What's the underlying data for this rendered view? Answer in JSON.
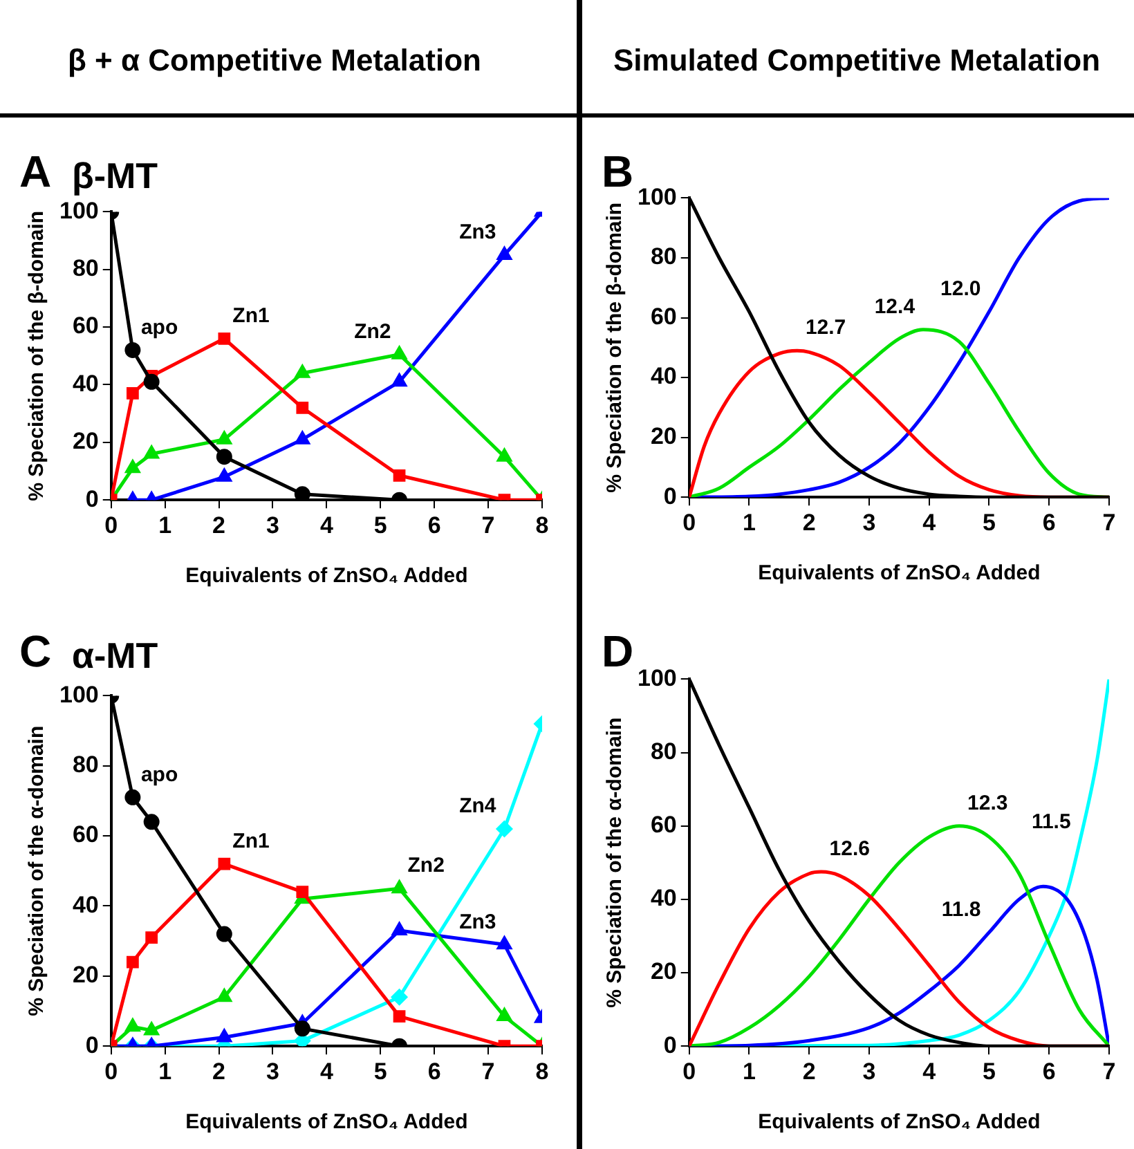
{
  "chart_data": [
    {
      "type": "line",
      "title": "β-MT",
      "xlabel": "Equivalents of ZnSO₄ Added",
      "ylabel": "% Speciation of the β-domain",
      "xlim": [
        0,
        8
      ],
      "xticks": [
        0,
        1,
        2,
        3,
        4,
        5,
        6,
        7,
        8
      ],
      "ylim": [
        0,
        100
      ],
      "yticks": [
        0,
        20,
        40,
        60,
        80,
        100
      ],
      "annotations": [
        "β + α Competitive Metalation",
        "A"
      ],
      "series": [
        {
          "name": "apo",
          "color": "#000000",
          "marker": "circle",
          "x": [
            0,
            0.4,
            0.75,
            2.1,
            3.55,
            5.35
          ],
          "values": [
            100,
            52,
            41,
            15,
            2,
            0
          ]
        },
        {
          "name": "Zn1",
          "color": "#ff0000",
          "marker": "square",
          "x": [
            0,
            0.4,
            0.75,
            2.1,
            3.55,
            5.35,
            7.3,
            8
          ],
          "values": [
            0,
            37,
            43,
            56,
            32,
            8.5,
            0,
            0
          ]
        },
        {
          "name": "Zn2",
          "color": "#00e000",
          "marker": "triangle",
          "x": [
            0,
            0.4,
            0.75,
            2.1,
            3.55,
            5.35,
            7.3,
            8
          ],
          "values": [
            0,
            11,
            16,
            21,
            44,
            50.5,
            15,
            0
          ]
        },
        {
          "name": "Zn3",
          "color": "#0000ff",
          "marker": "triangle",
          "x": [
            0.4,
            0.75,
            2.1,
            3.55,
            5.35,
            7.3,
            8
          ],
          "values": [
            0,
            0,
            8,
            21,
            41,
            85,
            100
          ]
        }
      ]
    },
    {
      "type": "line",
      "xlabel": "Equivalents of ZnSO₄ Added",
      "ylabel": "% Speciation of the β-domain",
      "xlim": [
        0,
        7
      ],
      "xticks": [
        0,
        1,
        2,
        3,
        4,
        5,
        6,
        7
      ],
      "ylim": [
        0,
        100
      ],
      "yticks": [
        0,
        20,
        40,
        60,
        80,
        100
      ],
      "annotations": [
        "Simulated Competitive Metalation",
        "B"
      ],
      "series": [
        {
          "color": "#000000",
          "x": [
            0,
            0.5,
            1,
            1.5,
            2,
            2.5,
            3,
            3.5,
            4,
            4.5,
            5,
            7
          ],
          "values": [
            100,
            80,
            62,
            42,
            25,
            14,
            7,
            3,
            1,
            0.3,
            0,
            0
          ]
        },
        {
          "name": "12.7",
          "color": "#ff0000",
          "x": [
            0,
            0.25,
            0.5,
            1,
            1.5,
            1.8,
            2,
            2.5,
            3,
            3.5,
            4,
            4.5,
            5,
            5.5,
            6,
            7
          ],
          "values": [
            0,
            17,
            28,
            42,
            48,
            49,
            48.5,
            44,
            35,
            25,
            15,
            7,
            2.5,
            0.5,
            0,
            0
          ]
        },
        {
          "name": "12.4",
          "color": "#00e000",
          "x": [
            0,
            0.5,
            1,
            1.5,
            2,
            2.5,
            3,
            3.5,
            3.9,
            4.5,
            5,
            5.5,
            6,
            6.5,
            7
          ],
          "values": [
            0,
            3,
            10,
            17,
            26,
            36,
            45,
            53,
            56,
            52,
            38,
            22,
            8,
            1,
            0
          ]
        },
        {
          "name": "12.0",
          "color": "#0000ff",
          "x": [
            0,
            1,
            1.5,
            2,
            2.5,
            3,
            3.5,
            4,
            4.5,
            5,
            5.5,
            6,
            6.5,
            7
          ],
          "values": [
            0,
            0.3,
            1,
            2.5,
            5,
            10,
            18,
            30,
            45,
            62,
            80,
            93,
            99,
            100
          ]
        }
      ]
    },
    {
      "type": "line",
      "title": "α-MT",
      "xlabel": "Equivalents of ZnSO₄ Added",
      "ylabel": "% Speciation of the α-domain",
      "xlim": [
        0,
        8
      ],
      "xticks": [
        0,
        1,
        2,
        3,
        4,
        5,
        6,
        7,
        8
      ],
      "ylim": [
        0,
        100
      ],
      "yticks": [
        0,
        20,
        40,
        60,
        80,
        100
      ],
      "annotations": [
        "C"
      ],
      "series": [
        {
          "name": "apo",
          "color": "#000000",
          "marker": "circle",
          "x": [
            0,
            0.4,
            0.75,
            2.1,
            3.55,
            5.35
          ],
          "values": [
            100,
            71,
            64,
            32,
            5,
            0
          ]
        },
        {
          "name": "Zn1",
          "color": "#ff0000",
          "marker": "square",
          "x": [
            0,
            0.4,
            0.75,
            2.1,
            3.55,
            5.35,
            7.3,
            8
          ],
          "values": [
            0,
            24,
            31,
            52,
            44,
            8.5,
            0,
            0
          ]
        },
        {
          "name": "Zn2",
          "color": "#00e000",
          "marker": "triangle",
          "x": [
            0,
            0.4,
            0.75,
            2.1,
            3.55,
            5.35,
            7.3,
            8
          ],
          "values": [
            0,
            5.5,
            4.5,
            14,
            42,
            45,
            8.5,
            0
          ]
        },
        {
          "name": "Zn3",
          "color": "#0000ff",
          "marker": "triangle",
          "x": [
            0,
            0.4,
            0.75,
            2.1,
            3.55,
            5.35,
            7.3,
            8
          ],
          "values": [
            0,
            0,
            0,
            2.5,
            6.5,
            33,
            29,
            8
          ]
        },
        {
          "name": "Zn4",
          "color": "#00ffff",
          "marker": "diamond",
          "x": [
            0,
            0.4,
            0.75,
            2.1,
            3.55,
            5.35,
            7.3,
            8
          ],
          "values": [
            0,
            0,
            0,
            0,
            1.5,
            14,
            62,
            92
          ]
        }
      ]
    },
    {
      "type": "line",
      "xlabel": "Equivalents of ZnSO₄ Added",
      "ylabel": "% Speciation of the α-domain",
      "xlim": [
        0,
        7
      ],
      "xticks": [
        0,
        1,
        2,
        3,
        4,
        5,
        6,
        7
      ],
      "ylim": [
        0,
        100
      ],
      "yticks": [
        0,
        20,
        40,
        60,
        80,
        100
      ],
      "annotations": [
        "D"
      ],
      "series": [
        {
          "color": "#000000",
          "x": [
            0,
            0.5,
            1,
            1.5,
            2,
            2.5,
            3,
            3.5,
            4,
            4.5,
            5,
            7
          ],
          "values": [
            100,
            82,
            65,
            48,
            34,
            23,
            14,
            7,
            3,
            1,
            0,
            0
          ]
        },
        {
          "name": "12.6",
          "color": "#ff0000",
          "x": [
            0,
            0.5,
            1,
            1.5,
            2,
            2.2,
            2.5,
            3,
            3.5,
            4,
            4.5,
            5,
            5.5,
            6,
            7
          ],
          "values": [
            0,
            17,
            32,
            42,
            47,
            47.5,
            46.5,
            41,
            32,
            22,
            12,
            5,
            1.5,
            0,
            0
          ]
        },
        {
          "name": "12.3",
          "color": "#00e000",
          "x": [
            0,
            0.5,
            1,
            1.5,
            2,
            2.5,
            3,
            3.5,
            4,
            4.5,
            5,
            5.5,
            6,
            6.5,
            7
          ],
          "values": [
            0,
            1,
            5,
            11,
            19,
            29,
            40,
            50,
            57,
            60,
            57,
            47,
            28,
            10,
            0
          ]
        },
        {
          "name": "11.8",
          "color": "#0000ff",
          "x": [
            0,
            1,
            2,
            3,
            3.5,
            4,
            4.5,
            5,
            5.5,
            5.9,
            6.3,
            6.6,
            6.8,
            7
          ],
          "values": [
            0,
            0.2,
            1.5,
            5,
            9,
            15,
            22,
            31,
            40,
            43.5,
            40,
            30,
            18,
            0
          ]
        },
        {
          "name": "11.5",
          "color": "#00ffff",
          "x": [
            0,
            3,
            4,
            4.5,
            5,
            5.5,
            6,
            6.3,
            6.5,
            6.8,
            7
          ],
          "values": [
            0,
            0.2,
            1.5,
            3,
            7,
            15,
            30,
            42,
            55,
            78,
            100
          ]
        }
      ]
    }
  ]
}
